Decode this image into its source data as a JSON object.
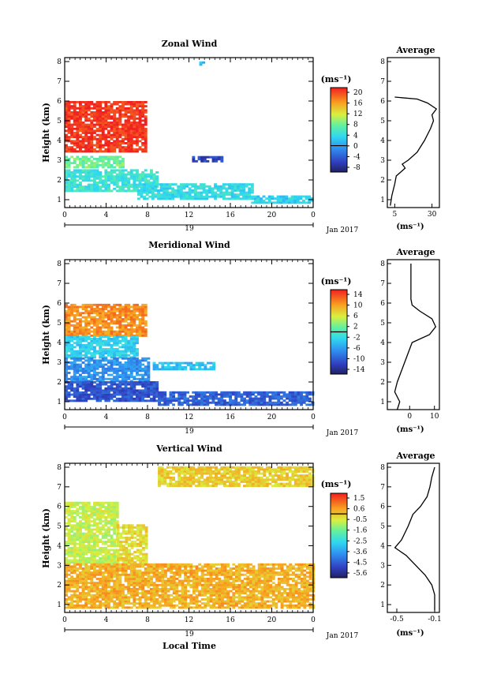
{
  "chart_data": [
    {
      "type": "heatmap",
      "title": "Zonal Wind",
      "ylabel": "Height (km)",
      "xlabel": "",
      "x_ticks": [
        "0",
        "4",
        "8",
        "12",
        "16",
        "20",
        "0"
      ],
      "y_ticks": [
        "1",
        "2",
        "3",
        "4",
        "5",
        "6",
        "7",
        "8"
      ],
      "xlim": [
        0,
        24
      ],
      "ylim": [
        0.6,
        8.2
      ],
      "date_day": "19",
      "date_month": "Jan 2017",
      "colorbar": {
        "unit": "(ms⁻¹)",
        "ticks": [
          "20",
          "16",
          "12",
          "8",
          "4",
          "0",
          "-4",
          "-8"
        ],
        "range": [
          -10,
          22
        ]
      },
      "blobs": [
        {
          "t0": 0,
          "t1": 7.8,
          "h0": 3.4,
          "h1": 5.9,
          "v": 21
        },
        {
          "t0": 0,
          "t1": 5.5,
          "h0": 2.6,
          "h1": 3.2,
          "v": 8
        },
        {
          "t0": 0,
          "t1": 9,
          "h0": 1.4,
          "h1": 2.5,
          "v": 5
        },
        {
          "t0": 7,
          "t1": 18,
          "h0": 1.0,
          "h1": 1.8,
          "v": 4
        },
        {
          "t0": 18,
          "t1": 24,
          "h0": 0.8,
          "h1": 1.2,
          "v": 3
        },
        {
          "t0": 12.3,
          "t1": 15.3,
          "h0": 2.9,
          "h1": 3.2,
          "v": -6
        },
        {
          "t0": 13,
          "t1": 13.3,
          "h0": 7.8,
          "h1": 8.0,
          "v": 2
        }
      ]
    },
    {
      "type": "line",
      "title": "Average",
      "x_ticks": [
        "5",
        "30"
      ],
      "xlim": [
        0,
        35
      ],
      "ylim": [
        0.6,
        8.2
      ],
      "y_ticks": [
        "1",
        "2",
        "3",
        "4",
        "5",
        "6",
        "7",
        "8"
      ],
      "xlabel": "(ms⁻¹)",
      "profile": [
        [
          0.7,
          2
        ],
        [
          1.2,
          3
        ],
        [
          1.8,
          5
        ],
        [
          2.2,
          6
        ],
        [
          2.4,
          9
        ],
        [
          2.6,
          12
        ],
        [
          2.8,
          10
        ],
        [
          3.0,
          14
        ],
        [
          3.4,
          20
        ],
        [
          4.0,
          25
        ],
        [
          4.6,
          29
        ],
        [
          5.0,
          31
        ],
        [
          5.3,
          30
        ],
        [
          5.6,
          33
        ],
        [
          5.9,
          27
        ],
        [
          6.1,
          20
        ],
        [
          6.2,
          5
        ]
      ]
    },
    {
      "type": "heatmap",
      "title": "Meridional Wind",
      "ylabel": "Height (km)",
      "xlabel": "",
      "x_ticks": [
        "0",
        "4",
        "8",
        "12",
        "16",
        "20",
        "0"
      ],
      "y_ticks": [
        "1",
        "2",
        "3",
        "4",
        "5",
        "6",
        "7",
        "8"
      ],
      "xlim": [
        0,
        24
      ],
      "ylim": [
        0.6,
        8.2
      ],
      "date_day": "19",
      "date_month": "Jan 2017",
      "colorbar": {
        "unit": "(ms⁻¹)",
        "ticks": [
          "14",
          "10",
          "6",
          "2",
          "-2",
          "-6",
          "-10",
          "-14"
        ],
        "range": [
          -16,
          16
        ]
      },
      "blobs": [
        {
          "t0": 0,
          "t1": 7.8,
          "h0": 4.3,
          "h1": 5.9,
          "v": 11
        },
        {
          "t0": 0,
          "t1": 7,
          "h0": 3.2,
          "h1": 4.3,
          "v": -3
        },
        {
          "t0": 0,
          "t1": 8,
          "h0": 2.0,
          "h1": 3.2,
          "v": -7
        },
        {
          "t0": 0,
          "t1": 9,
          "h0": 1.0,
          "h1": 2.0,
          "v": -11
        },
        {
          "t0": 9,
          "t1": 24,
          "h0": 0.8,
          "h1": 1.5,
          "v": -10
        },
        {
          "t0": 8.5,
          "t1": 14.5,
          "h0": 2.6,
          "h1": 3.0,
          "v": -4
        }
      ]
    },
    {
      "type": "line",
      "title": "Average",
      "x_ticks": [
        "0",
        "10"
      ],
      "xlim": [
        -9,
        12
      ],
      "ylim": [
        0.6,
        8.2
      ],
      "y_ticks": [
        "1",
        "2",
        "3",
        "4",
        "5",
        "6",
        "7",
        "8"
      ],
      "xlabel": "(ms⁻¹)",
      "profile": [
        [
          0.6,
          -5
        ],
        [
          1.0,
          -4
        ],
        [
          1.5,
          -6
        ],
        [
          2.0,
          -5
        ],
        [
          2.5,
          -3.5
        ],
        [
          3.0,
          -2
        ],
        [
          3.5,
          -0.5
        ],
        [
          4.0,
          1
        ],
        [
          4.4,
          8
        ],
        [
          4.8,
          10.5
        ],
        [
          5.2,
          9
        ],
        [
          5.6,
          4
        ],
        [
          5.9,
          1
        ],
        [
          6.2,
          0.5
        ],
        [
          8.0,
          0.5
        ]
      ]
    },
    {
      "type": "heatmap",
      "title": "Vertical Wind",
      "ylabel": "Height (km)",
      "xlabel": "Local Time",
      "x_ticks": [
        "0",
        "4",
        "8",
        "12",
        "16",
        "20",
        "0"
      ],
      "y_ticks": [
        "1",
        "2",
        "3",
        "4",
        "5",
        "6",
        "7",
        "8"
      ],
      "xlim": [
        0,
        24
      ],
      "ylim": [
        0.6,
        8.2
      ],
      "date_day": "19",
      "date_month": "Jan 2017",
      "colorbar": {
        "unit": "(ms⁻¹)",
        "ticks": [
          "1.5",
          "0.6",
          "-0.5",
          "-1.6",
          "-2.5",
          "-3.6",
          "-4.5",
          "-5.6"
        ],
        "range": [
          -6.2,
          2.0
        ]
      },
      "blobs": [
        {
          "t0": 0,
          "t1": 5,
          "h0": 3.0,
          "h1": 6.2,
          "v": -0.8
        },
        {
          "t0": 5,
          "t1": 8,
          "h0": 3.0,
          "h1": 5.0,
          "v": -0.3
        },
        {
          "t0": 0,
          "t1": 24,
          "h0": 0.8,
          "h1": 3.0,
          "v": 0.3
        },
        {
          "t0": 9,
          "t1": 24,
          "h0": 7.0,
          "h1": 8.0,
          "v": -0.1
        }
      ]
    },
    {
      "type": "line",
      "title": "Average",
      "x_ticks": [
        "-0.5",
        "-0.1"
      ],
      "xlim": [
        -0.6,
        -0.05
      ],
      "ylim": [
        0.6,
        8.2
      ],
      "y_ticks": [
        "1",
        "2",
        "3",
        "4",
        "5",
        "6",
        "7",
        "8"
      ],
      "xlabel": "(ms⁻¹)",
      "profile": [
        [
          0.7,
          -0.1
        ],
        [
          1.5,
          -0.1
        ],
        [
          2.0,
          -0.13
        ],
        [
          2.5,
          -0.2
        ],
        [
          3.0,
          -0.3
        ],
        [
          3.5,
          -0.4
        ],
        [
          3.9,
          -0.52
        ],
        [
          4.3,
          -0.45
        ],
        [
          5.0,
          -0.38
        ],
        [
          5.6,
          -0.33
        ],
        [
          6.0,
          -0.25
        ],
        [
          6.5,
          -0.18
        ],
        [
          7.0,
          -0.15
        ],
        [
          7.5,
          -0.13
        ],
        [
          8.0,
          -0.1
        ]
      ]
    }
  ]
}
